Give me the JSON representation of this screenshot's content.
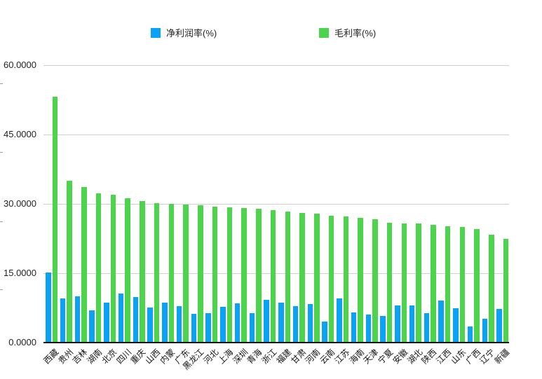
{
  "legend": {
    "items": [
      {
        "label": "净利润率(%)"
      },
      {
        "label": "毛利率(%)"
      }
    ]
  },
  "y_axis": {
    "ticks": [
      {
        "value": 0,
        "label": "0.0000"
      },
      {
        "value": 15,
        "label": "15.0000"
      },
      {
        "value": 30,
        "label": "30.0000"
      },
      {
        "value": 45,
        "label": "45.0000"
      },
      {
        "value": 60,
        "label": "60.0000"
      }
    ]
  },
  "colors": {
    "net_profit_margin": "#09a2f4",
    "gross_margin": "#4dd44d",
    "gridline": "#cfcfcf",
    "axis_line": "#141414"
  },
  "chart_data": {
    "type": "bar",
    "title": "",
    "xlabel": "",
    "ylabel": "",
    "ylim": [
      0,
      60
    ],
    "y_ticks": [
      0,
      15,
      30,
      45,
      60
    ],
    "grid": true,
    "legend_position": "top",
    "categories": [
      "西藏",
      "贵州",
      "吉林",
      "湖南",
      "北京",
      "四川",
      "重庆",
      "山西",
      "内蒙",
      "广东",
      "黑龙江",
      "河北",
      "上海",
      "深圳",
      "青海",
      "浙江",
      "福建",
      "甘肃",
      "河南",
      "云南",
      "江苏",
      "海南",
      "天津",
      "宁夏",
      "安徽",
      "湖北",
      "陕西",
      "江西",
      "山东",
      "广西",
      "辽宁",
      "新疆"
    ],
    "series": [
      {
        "name": "净利润率(%)",
        "color": "#09a2f4",
        "values": [
          15.1,
          9.6,
          10.0,
          7.0,
          8.7,
          10.6,
          9.8,
          7.6,
          8.7,
          7.9,
          6.2,
          6.4,
          7.8,
          8.5,
          6.3,
          9.3,
          8.6,
          7.9,
          8.3,
          4.5,
          9.5,
          6.5,
          6.0,
          5.8,
          8.1,
          8.0,
          6.4,
          9.1,
          7.4,
          3.5,
          5.2,
          7.3
        ]
      },
      {
        "name": "毛利率(%)",
        "color": "#4dd44d",
        "values": [
          53.2,
          35.0,
          33.7,
          32.3,
          32.0,
          31.2,
          30.6,
          30.2,
          30.0,
          29.9,
          29.7,
          29.4,
          29.3,
          29.1,
          29.0,
          28.6,
          28.4,
          28.0,
          27.9,
          27.5,
          27.3,
          27.0,
          26.7,
          25.9,
          25.7,
          25.7,
          25.4,
          25.2,
          25.0,
          24.6,
          23.4,
          22.5
        ]
      }
    ]
  }
}
